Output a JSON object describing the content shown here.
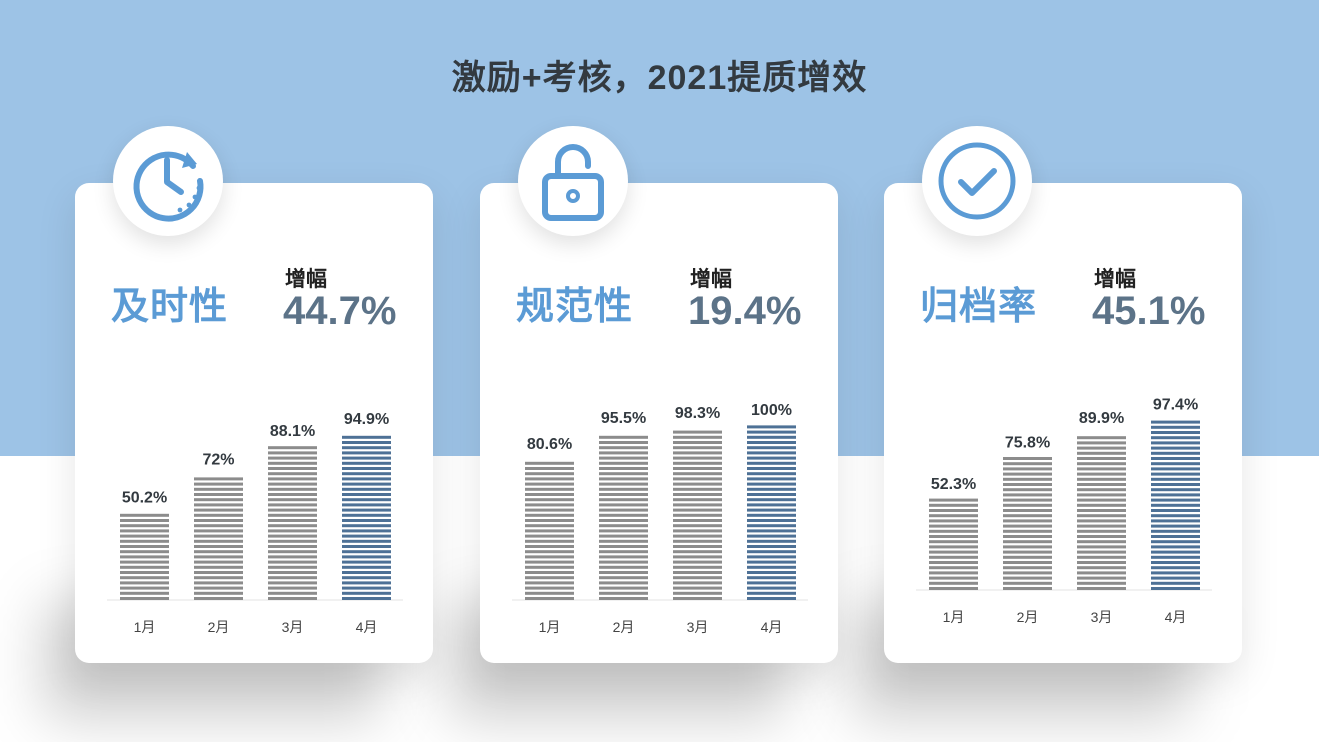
{
  "title": "激励+考核，2021提质增效",
  "colors": {
    "background_top": "#9dc3e6",
    "accent": "#5b9bd5",
    "increase_value": "#5c7388",
    "bar_gray": "#8c8c8c",
    "bar_highlight": "#4e7196"
  },
  "cards": [
    {
      "name": "及时性",
      "icon": "clock-icon",
      "increase_label": "增幅",
      "increase_value": "44.7%"
    },
    {
      "name": "规范性",
      "icon": "unlock-icon",
      "increase_label": "增幅",
      "increase_value": "19.4%"
    },
    {
      "name": "归档率",
      "icon": "check-circle-icon",
      "increase_label": "增幅",
      "increase_value": "45.1%"
    }
  ],
  "chart_data": [
    {
      "type": "bar",
      "categories": [
        "1月",
        "2月",
        "3月",
        "4月"
      ],
      "values": [
        50.2,
        72,
        88.1,
        94.9
      ],
      "labels": [
        "50.2%",
        "72%",
        "88.1%",
        "94.9%"
      ],
      "highlight_index": 3,
      "ylim": [
        0,
        100
      ],
      "grid": false
    },
    {
      "type": "bar",
      "categories": [
        "1月",
        "2月",
        "3月",
        "4月"
      ],
      "values": [
        80.6,
        95.5,
        98.3,
        100
      ],
      "labels": [
        "80.6%",
        "95.5%",
        "98.3%",
        "100%"
      ],
      "highlight_index": 3,
      "ylim": [
        0,
        100
      ],
      "grid": false
    },
    {
      "type": "bar",
      "categories": [
        "1月",
        "2月",
        "3月",
        "4月"
      ],
      "values": [
        52.3,
        75.8,
        89.9,
        97.4
      ],
      "labels": [
        "52.3%",
        "75.8%",
        "89.9%",
        "97.4%"
      ],
      "highlight_index": 3,
      "ylim": [
        0,
        100
      ],
      "grid": false
    }
  ]
}
